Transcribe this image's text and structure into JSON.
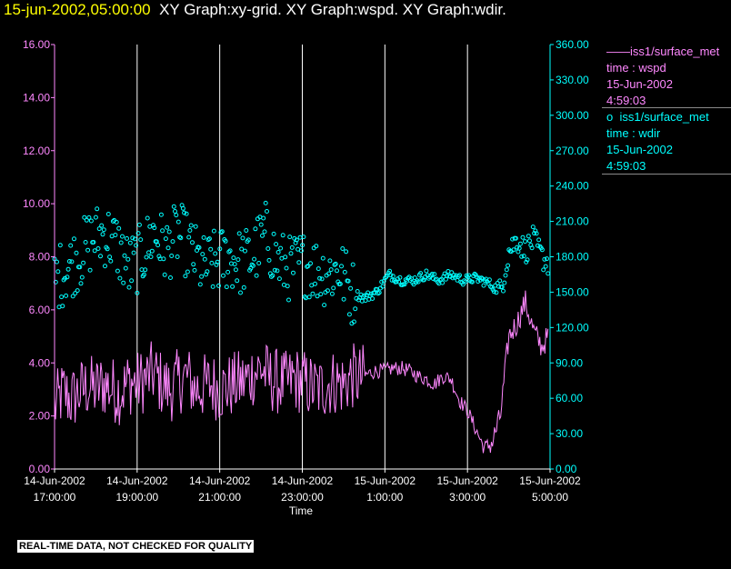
{
  "header": {
    "timestamp": "15-jun-2002,05:00:00",
    "graphs": "XY Graph:xy-grid.  XY Graph:wspd.  XY Graph:wdir."
  },
  "legend": {
    "series1": {
      "marker": "——",
      "name": "iss1/surface_met",
      "detail": "time : wspd",
      "date": "15-Jun-2002",
      "time": "4:59:03"
    },
    "series2": {
      "marker": "o",
      "name": "iss1/surface_met",
      "detail": "time : wdir",
      "date": "15-Jun-2002",
      "time": "4:59:03"
    }
  },
  "disclaimer": "REAL-TIME DATA, NOT CHECKED FOR QUALITY",
  "chart_data": {
    "type": "line",
    "xlabel": "Time",
    "x_range_hours": [
      0,
      12
    ],
    "x_ticks": [
      {
        "hour": 0,
        "date": "14-Jun-2002",
        "time": "17:00:00"
      },
      {
        "hour": 2,
        "date": "14-Jun-2002",
        "time": "19:00:00"
      },
      {
        "hour": 4,
        "date": "14-Jun-2002",
        "time": "21:00:00"
      },
      {
        "hour": 6,
        "date": "14-Jun-2002",
        "time": "23:00:00"
      },
      {
        "hour": 8,
        "date": "15-Jun-2002",
        "time": "1:00:00"
      },
      {
        "hour": 10,
        "date": "15-Jun-2002",
        "time": "3:00:00"
      },
      {
        "hour": 12,
        "date": "15-Jun-2002",
        "time": "5:00:00"
      }
    ],
    "y_left": {
      "ylim": [
        0,
        16
      ],
      "ticks": [
        "0.00",
        "2.00",
        "4.00",
        "6.00",
        "8.00",
        "10.00",
        "12.00",
        "14.00",
        "16.00"
      ]
    },
    "y_right": {
      "ylim": [
        0,
        360
      ],
      "ticks": [
        "0.00",
        "30.00",
        "60.00",
        "90.00",
        "120.00",
        "150.00",
        "180.00",
        "210.00",
        "240.00",
        "270.00",
        "300.00",
        "330.00",
        "360.00"
      ]
    },
    "grid": "vertical",
    "series": [
      {
        "name": "iss1/surface_met wspd",
        "axis": "left",
        "style": "line",
        "color": "#ff88ff",
        "x": [
          0.0,
          0.2,
          0.4,
          0.6,
          0.8,
          1.0,
          1.2,
          1.4,
          1.6,
          1.8,
          2.0,
          2.2,
          2.4,
          2.6,
          2.8,
          3.0,
          3.2,
          3.4,
          3.6,
          3.8,
          4.0,
          4.2,
          4.4,
          4.6,
          4.8,
          5.0,
          5.2,
          5.4,
          5.6,
          5.8,
          6.0,
          6.2,
          6.4,
          6.6,
          6.8,
          7.0,
          7.2,
          7.4,
          7.6,
          7.8,
          8.0,
          8.2,
          8.4,
          8.6,
          8.8,
          9.0,
          9.2,
          9.4,
          9.6,
          9.8,
          10.0,
          10.2,
          10.4,
          10.6,
          10.8,
          11.0,
          11.2,
          11.4,
          11.6,
          11.8,
          11.95
        ],
        "y": [
          2.3,
          2.9,
          2.6,
          2.9,
          3.1,
          3.0,
          3.2,
          3.0,
          2.9,
          3.3,
          3.2,
          3.4,
          3.6,
          3.2,
          3.0,
          3.3,
          3.5,
          3.0,
          3.1,
          3.2,
          3.0,
          3.1,
          3.2,
          3.3,
          3.6,
          3.8,
          3.4,
          3.3,
          3.2,
          3.4,
          3.3,
          3.1,
          3.0,
          3.2,
          3.3,
          3.2,
          3.5,
          3.4,
          3.6,
          3.7,
          3.7,
          3.8,
          3.8,
          3.7,
          3.5,
          3.4,
          3.2,
          3.5,
          3.4,
          2.6,
          2.2,
          1.5,
          0.8,
          1.0,
          2.0,
          5.0,
          5.5,
          6.3,
          5.2,
          4.6,
          5.0
        ],
        "noise": 0.8
      },
      {
        "name": "iss1/surface_met wdir",
        "axis": "right",
        "style": "markers",
        "color": "#00ffff",
        "x": [
          0.0,
          0.3,
          0.6,
          0.9,
          1.2,
          1.5,
          1.8,
          2.1,
          2.4,
          2.7,
          3.0,
          3.3,
          3.6,
          3.9,
          4.2,
          4.5,
          4.8,
          5.1,
          5.4,
          5.7,
          6.0,
          6.3,
          6.6,
          6.9,
          7.2,
          7.5,
          7.8,
          8.1,
          8.4,
          8.7,
          9.0,
          9.3,
          9.6,
          9.9,
          10.2,
          10.5,
          10.8,
          11.0,
          11.2,
          11.4,
          11.6,
          11.8,
          11.95
        ],
        "y": [
          160,
          170,
          180,
          195,
          200,
          190,
          170,
          180,
          200,
          185,
          200,
          185,
          170,
          175,
          180,
          175,
          180,
          200,
          175,
          170,
          175,
          170,
          165,
          170,
          150,
          145,
          150,
          165,
          160,
          160,
          165,
          160,
          165,
          160,
          162,
          158,
          150,
          185,
          195,
          185,
          195,
          180,
          175
        ],
        "noise": 22
      }
    ]
  }
}
